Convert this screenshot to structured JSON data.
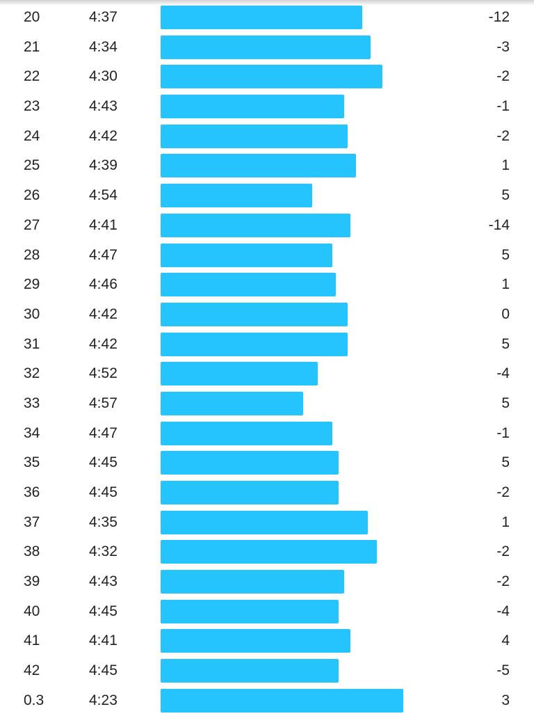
{
  "colors": {
    "bar": "#26c4ff",
    "text": "#222222",
    "background": "#ffffff"
  },
  "chart_data": {
    "type": "bar",
    "pace_scale_seconds": [
      245,
      310
    ],
    "rows": [
      {
        "km": "20",
        "pace": "4:37",
        "elev": "-12"
      },
      {
        "km": "21",
        "pace": "4:34",
        "elev": "-3"
      },
      {
        "km": "22",
        "pace": "4:30",
        "elev": "-2"
      },
      {
        "km": "23",
        "pace": "4:43",
        "elev": "-1"
      },
      {
        "km": "24",
        "pace": "4:42",
        "elev": "-2"
      },
      {
        "km": "25",
        "pace": "4:39",
        "elev": "1"
      },
      {
        "km": "26",
        "pace": "4:54",
        "elev": "5"
      },
      {
        "km": "27",
        "pace": "4:41",
        "elev": "-14"
      },
      {
        "km": "28",
        "pace": "4:47",
        "elev": "5"
      },
      {
        "km": "29",
        "pace": "4:46",
        "elev": "1"
      },
      {
        "km": "30",
        "pace": "4:42",
        "elev": "0"
      },
      {
        "km": "31",
        "pace": "4:42",
        "elev": "5"
      },
      {
        "km": "32",
        "pace": "4:52",
        "elev": "-4"
      },
      {
        "km": "33",
        "pace": "4:57",
        "elev": "5"
      },
      {
        "km": "34",
        "pace": "4:47",
        "elev": "-1"
      },
      {
        "km": "35",
        "pace": "4:45",
        "elev": "5"
      },
      {
        "km": "36",
        "pace": "4:45",
        "elev": "-2"
      },
      {
        "km": "37",
        "pace": "4:35",
        "elev": "1"
      },
      {
        "km": "38",
        "pace": "4:32",
        "elev": "-2"
      },
      {
        "km": "39",
        "pace": "4:43",
        "elev": "-2"
      },
      {
        "km": "40",
        "pace": "4:45",
        "elev": "-4"
      },
      {
        "km": "41",
        "pace": "4:41",
        "elev": "4"
      },
      {
        "km": "42",
        "pace": "4:45",
        "elev": "-5"
      },
      {
        "km": "0.3",
        "pace": "4:23",
        "elev": "3"
      }
    ]
  }
}
